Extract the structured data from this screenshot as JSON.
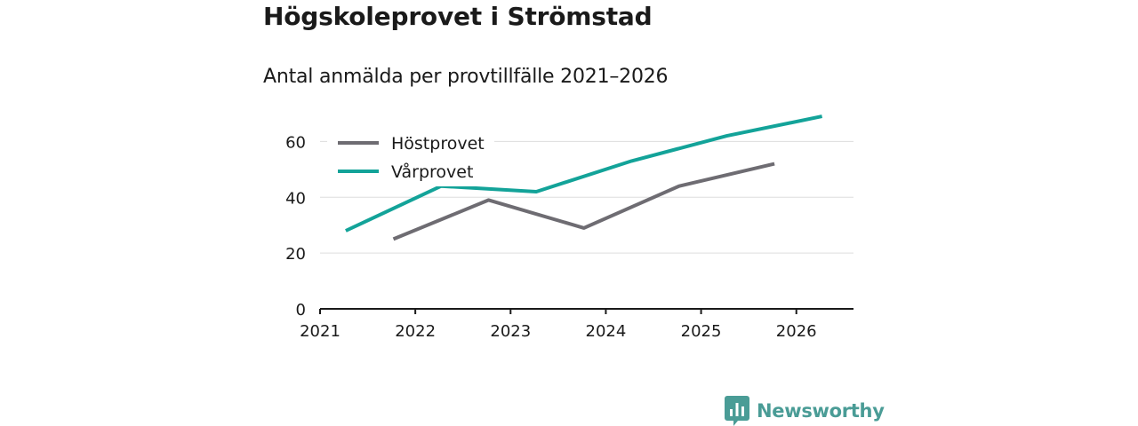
{
  "title": "Högskoleprovet i Strömstad",
  "subtitle": "Antal anmälda per provtillfälle 2021–2026",
  "brand": {
    "name": "Newsworthy",
    "icon": "newsworthy-logo-icon",
    "color": "#4a9c96"
  },
  "colors": {
    "host": "#6e6c72",
    "var": "#13a399",
    "axis": "#1a1a1a",
    "grid": "#dddddd"
  },
  "chart_data": {
    "type": "line",
    "title": "Högskoleprovet i Strömstad",
    "subtitle": "Antal anmälda per provtillfälle 2021–2026",
    "xlabel": "",
    "ylabel": "",
    "xlim": [
      2021,
      2026.6
    ],
    "ylim": [
      0,
      70
    ],
    "x_ticks": [
      "2021",
      "2022",
      "2023",
      "2024",
      "2025",
      "2026"
    ],
    "y_ticks": [
      "0",
      "20",
      "40",
      "60"
    ],
    "grid": true,
    "legend_position": "top-left",
    "series": [
      {
        "name": "Höstprovet",
        "color": "#6e6c72",
        "x": [
          2021.77,
          2022.77,
          2023.77,
          2024.77,
          2025.77
        ],
        "y": [
          25,
          39,
          29,
          44,
          52
        ]
      },
      {
        "name": "Vårprovet",
        "color": "#13a399",
        "x": [
          2021.27,
          2022.27,
          2023.27,
          2024.27,
          2025.27,
          2026.27
        ],
        "y": [
          28,
          44,
          42,
          53,
          62,
          69
        ]
      }
    ]
  }
}
